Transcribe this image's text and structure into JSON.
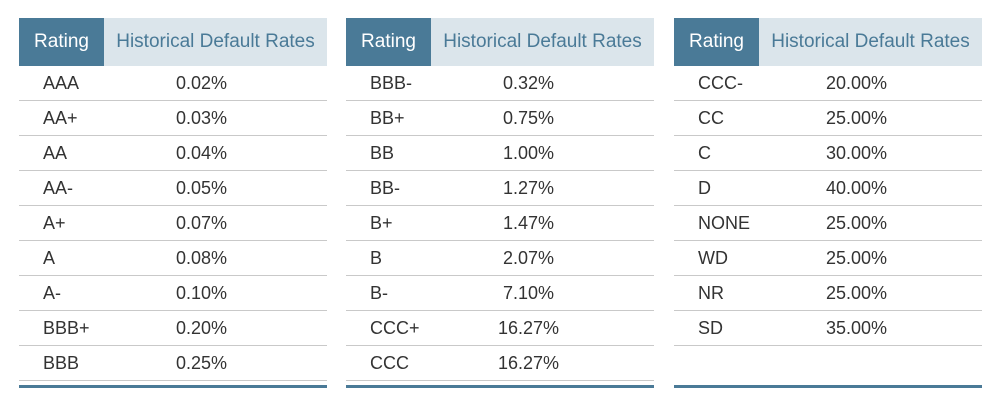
{
  "headers": {
    "rating": "Rating",
    "rate": "Historical Default Rates"
  },
  "tables": [
    [
      {
        "rating": "AAA",
        "rate": "0.02%"
      },
      {
        "rating": "AA+",
        "rate": "0.03%"
      },
      {
        "rating": "AA",
        "rate": "0.04%"
      },
      {
        "rating": "AA-",
        "rate": "0.05%"
      },
      {
        "rating": "A+",
        "rate": "0.07%"
      },
      {
        "rating": "A",
        "rate": "0.08%"
      },
      {
        "rating": "A-",
        "rate": "0.10%"
      },
      {
        "rating": "BBB+",
        "rate": "0.20%"
      },
      {
        "rating": "BBB",
        "rate": "0.25%"
      }
    ],
    [
      {
        "rating": "BBB-",
        "rate": "0.32%"
      },
      {
        "rating": "BB+",
        "rate": "0.75%"
      },
      {
        "rating": "BB",
        "rate": "1.00%"
      },
      {
        "rating": "BB-",
        "rate": "1.27%"
      },
      {
        "rating": "B+",
        "rate": "1.47%"
      },
      {
        "rating": "B",
        "rate": "2.07%"
      },
      {
        "rating": "B-",
        "rate": "7.10%"
      },
      {
        "rating": "CCC+",
        "rate": "16.27%"
      },
      {
        "rating": "CCC",
        "rate": "16.27%"
      }
    ],
    [
      {
        "rating": "CCC-",
        "rate": "20.00%"
      },
      {
        "rating": "CC",
        "rate": "25.00%"
      },
      {
        "rating": "C",
        "rate": "30.00%"
      },
      {
        "rating": "D",
        "rate": "40.00%"
      },
      {
        "rating": "NONE",
        "rate": "25.00%"
      },
      {
        "rating": "WD",
        "rate": "25.00%"
      },
      {
        "rating": "NR",
        "rate": "25.00%"
      },
      {
        "rating": "SD",
        "rate": "35.00%"
      }
    ]
  ],
  "colors": {
    "header_dark": "#4a7a97",
    "header_light": "#dbe5eb",
    "rule": "#c9c9c9"
  }
}
